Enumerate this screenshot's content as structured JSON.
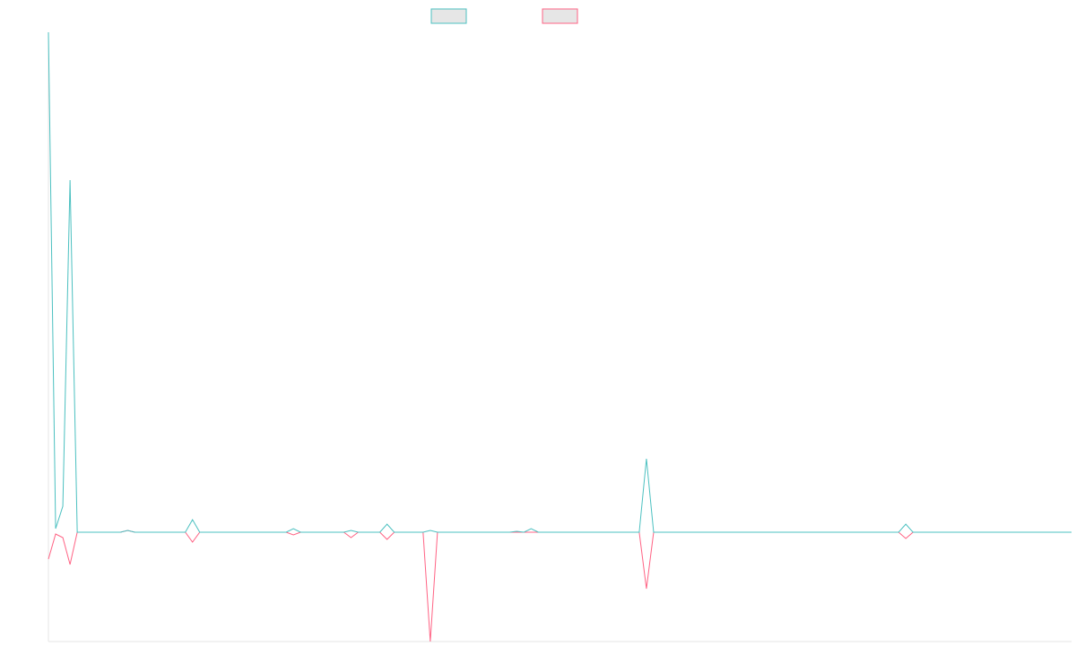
{
  "chart_data": {
    "type": "line",
    "ylim": [
      -12.2,
      55.8
    ],
    "series": [
      {
        "color": "#4bc0c0",
        "values": [
          55.8,
          0.4,
          2.9,
          39.3,
          0,
          0,
          0,
          0,
          0,
          0,
          0,
          0.2,
          0,
          0,
          0,
          0,
          0,
          0,
          0,
          0,
          1.4,
          0,
          0,
          0,
          0,
          0,
          0,
          0,
          0,
          0,
          0,
          0,
          0,
          0,
          0.4,
          0,
          0,
          0,
          0,
          0,
          0,
          0,
          0.2,
          0,
          0,
          0,
          0,
          0.9,
          0,
          0,
          0,
          0,
          0,
          0.2,
          0,
          0,
          0,
          0,
          0,
          0,
          0,
          0,
          0,
          0,
          0,
          0.1,
          0,
          0.4,
          0,
          0,
          0,
          0,
          0,
          0,
          0,
          0,
          0,
          0,
          0,
          0,
          0,
          0,
          0,
          8.2,
          0,
          0,
          0,
          0,
          0,
          0,
          0,
          0,
          0,
          0,
          0,
          0,
          0,
          0,
          0,
          0,
          0,
          0,
          0,
          0,
          0,
          0,
          0,
          0,
          0,
          0,
          0,
          0,
          0,
          0,
          0,
          0,
          0,
          0,
          0,
          0.9,
          0,
          0,
          0,
          0,
          0,
          0,
          0,
          0,
          0,
          0,
          0,
          0,
          0,
          0,
          0,
          0,
          0,
          0,
          0,
          0,
          0,
          0,
          0
        ]
      },
      {
        "color": "#ff6384",
        "values": [
          -3.0,
          -0.2,
          -0.6,
          -3.6,
          0,
          0,
          0,
          0,
          0,
          0,
          0,
          0.2,
          0,
          0,
          0,
          0,
          0,
          0,
          0,
          0,
          -1.1,
          0,
          0,
          0,
          0,
          0,
          0,
          0,
          0,
          0,
          0,
          0,
          0,
          0,
          -0.3,
          0,
          0,
          0,
          0,
          0,
          0,
          0,
          -0.6,
          0,
          0,
          0,
          0,
          -0.8,
          0,
          0,
          0,
          0,
          0,
          -12.2,
          0,
          0,
          0,
          0,
          0,
          0,
          0,
          0,
          0,
          0,
          0,
          0,
          0,
          0,
          0,
          0,
          0,
          0,
          0,
          0,
          0,
          0,
          0,
          0,
          0,
          0,
          0,
          0,
          0,
          -6.3,
          0,
          0,
          0,
          0,
          0,
          0,
          0,
          0,
          0,
          0,
          0,
          0,
          0,
          0,
          0,
          0,
          0,
          0,
          0,
          0,
          0,
          0,
          0,
          0,
          0,
          0,
          0,
          0,
          0,
          0,
          0,
          0,
          0,
          0,
          0,
          -0.7,
          0,
          0,
          0,
          0,
          0,
          0,
          0,
          0,
          0,
          0,
          0,
          0,
          0,
          0,
          0,
          0,
          0,
          0,
          0,
          0,
          0,
          0,
          0
        ]
      }
    ]
  }
}
